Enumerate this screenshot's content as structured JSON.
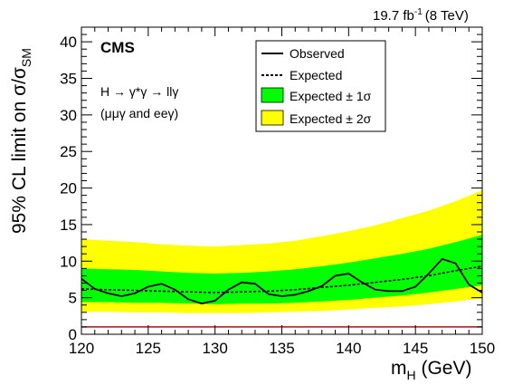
{
  "header": {
    "lumi_value": "19.7 fb",
    "lumi_exp": "-1",
    "energy": "(8 TeV)"
  },
  "labels": {
    "experiment": "CMS",
    "process": "H → γ*γ → llγ",
    "channels": "(μμγ and eeγ)",
    "ylabel_prefix": "95% CL limit on σ/σ",
    "ylabel_sub": "SM",
    "xlabel_prefix": "m",
    "xlabel_sub": "H",
    "xlabel_suffix": " (GeV)"
  },
  "legend": {
    "observed": "Observed",
    "expected": "Expected",
    "band1": "Expected ± 1σ",
    "band2": "Expected ± 2σ"
  },
  "colors": {
    "observed": "#000000",
    "expected": "#000000",
    "band1": "#00ff00",
    "band2": "#ffff00",
    "sm_line": "#aa1111"
  },
  "chart_data": {
    "type": "line",
    "xlim": [
      120,
      150
    ],
    "ylim": [
      0,
      42
    ],
    "xticks": [
      120,
      125,
      130,
      135,
      140,
      145,
      150
    ],
    "yticks": [
      0,
      5,
      10,
      15,
      20,
      25,
      30,
      35,
      40
    ],
    "xlabel": "m_H (GeV)",
    "ylabel": "95% CL limit on σ/σ_SM",
    "reference_line": 1.0,
    "grid": false,
    "legend_position": "top-right",
    "series": [
      {
        "name": "Observed",
        "x": [
          120,
          121,
          122,
          123,
          124,
          125,
          126,
          127,
          128,
          129,
          130,
          131,
          132,
          133,
          134,
          135,
          136,
          137,
          138,
          139,
          140,
          141,
          142,
          143,
          144,
          145,
          146,
          147,
          148,
          149,
          150
        ],
        "y": [
          7.6,
          6.2,
          5.6,
          5.2,
          5.6,
          6.5,
          6.9,
          6.1,
          4.8,
          4.2,
          4.6,
          6.1,
          7.1,
          6.9,
          5.5,
          5.2,
          5.4,
          5.9,
          6.6,
          8.0,
          8.3,
          7.1,
          6.1,
          5.9,
          5.9,
          6.5,
          8.3,
          10.3,
          9.7,
          6.8,
          5.7
        ]
      },
      {
        "name": "Expected",
        "x": [
          120,
          122,
          124,
          126,
          128,
          130,
          132,
          134,
          136,
          138,
          140,
          142,
          144,
          146,
          148,
          150
        ],
        "y": [
          6.2,
          6.1,
          6.0,
          5.9,
          5.8,
          5.7,
          5.8,
          5.9,
          6.1,
          6.4,
          6.7,
          7.1,
          7.5,
          8.0,
          8.7,
          9.3
        ]
      }
    ],
    "bands": {
      "x": [
        120,
        122,
        124,
        126,
        128,
        130,
        132,
        134,
        136,
        138,
        140,
        142,
        144,
        146,
        148,
        150
      ],
      "one_sigma_low": [
        4.4,
        4.4,
        4.3,
        4.3,
        4.2,
        4.1,
        4.2,
        4.2,
        4.3,
        4.5,
        4.7,
        5.0,
        5.3,
        5.7,
        6.2,
        6.7
      ],
      "one_sigma_high": [
        9.0,
        8.9,
        8.8,
        8.6,
        8.4,
        8.3,
        8.4,
        8.6,
        8.9,
        9.3,
        9.8,
        10.4,
        11.0,
        11.7,
        12.6,
        13.6
      ],
      "two_sigma_low": [
        3.1,
        3.1,
        3.0,
        3.0,
        2.9,
        2.9,
        2.9,
        3.0,
        3.1,
        3.2,
        3.4,
        3.6,
        3.8,
        4.1,
        4.5,
        4.9
      ],
      "two_sigma_high": [
        13.0,
        12.8,
        12.6,
        12.3,
        12.1,
        12.0,
        12.2,
        12.4,
        12.8,
        13.4,
        14.1,
        14.9,
        15.9,
        16.9,
        18.2,
        19.7
      ]
    }
  }
}
